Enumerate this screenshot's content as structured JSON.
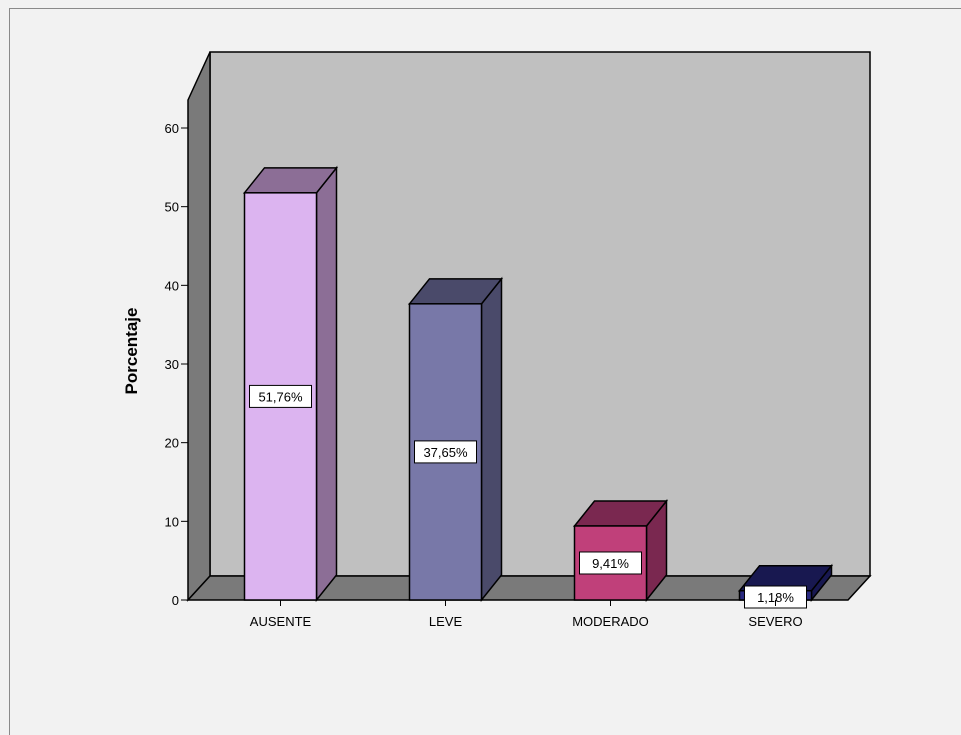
{
  "chart_data": {
    "type": "bar",
    "title": "",
    "xlabel": "",
    "ylabel": "Porcentaje",
    "ylim": [
      0,
      60
    ],
    "yticks": [
      0,
      10,
      20,
      30,
      40,
      50,
      60
    ],
    "categories": [
      "AUSENTE",
      "LEVE",
      "MODERADO",
      "SEVERO"
    ],
    "values": [
      51.76,
      37.65,
      9.41,
      1.18
    ],
    "data_labels": [
      "51,76%",
      "37,65%",
      "9,41%",
      "1,18%"
    ],
    "colors": {
      "front": [
        "#dcb4f0",
        "#7878a8",
        "#c0407a",
        "#2a2a80"
      ],
      "top": [
        "#8c6e96",
        "#4a4a6a",
        "#7a2850",
        "#181850"
      ],
      "side": [
        "#8c6e96",
        "#4a4a6a",
        "#7a2850",
        "#181850"
      ],
      "back_wall": "#c0c0c0",
      "side_wall": "#7a7a7a",
      "floor": "#7a7a7a"
    },
    "style": "3d",
    "grid": false,
    "legend": "none"
  }
}
